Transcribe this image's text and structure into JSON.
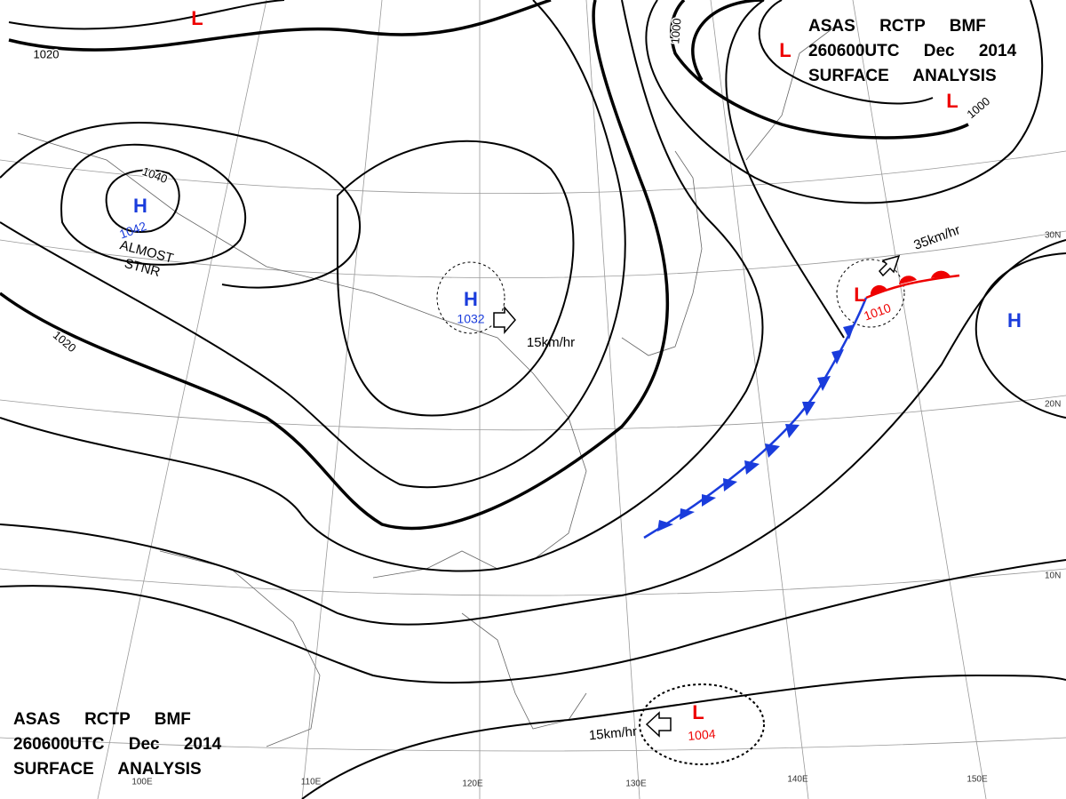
{
  "header": {
    "lines": [
      "ASAS RCTP BMF",
      "260600UTC Dec 2014",
      "SURFACE ANALYSIS"
    ]
  },
  "footer": {
    "lines": [
      "ASAS RCTP BMF",
      "260600UTC Dec 2014",
      "SURFACE ANALYSIS"
    ]
  },
  "systems": [
    {
      "symbol": "H",
      "pressure": "1042"
    },
    {
      "symbol": "H",
      "pressure": "1032"
    },
    {
      "symbol": "H"
    },
    {
      "symbol": "L"
    },
    {
      "symbol": "L"
    },
    {
      "symbol": "L"
    },
    {
      "symbol": "L",
      "pressure": "1010"
    },
    {
      "symbol": "L",
      "pressure": "1004"
    }
  ],
  "isobar_labels": [
    "1020",
    "1040",
    "1020",
    "1000",
    "1000"
  ],
  "movements": [
    "15km/hr",
    "35km/hr",
    "15km/hr"
  ],
  "notes": [
    "ALMOST",
    "STNR"
  ],
  "latitude_labels": [
    "30N",
    "20N",
    "10N"
  ],
  "longitude_labels": [
    "100E",
    "110E",
    "120E",
    "130E",
    "140E",
    "150E"
  ]
}
